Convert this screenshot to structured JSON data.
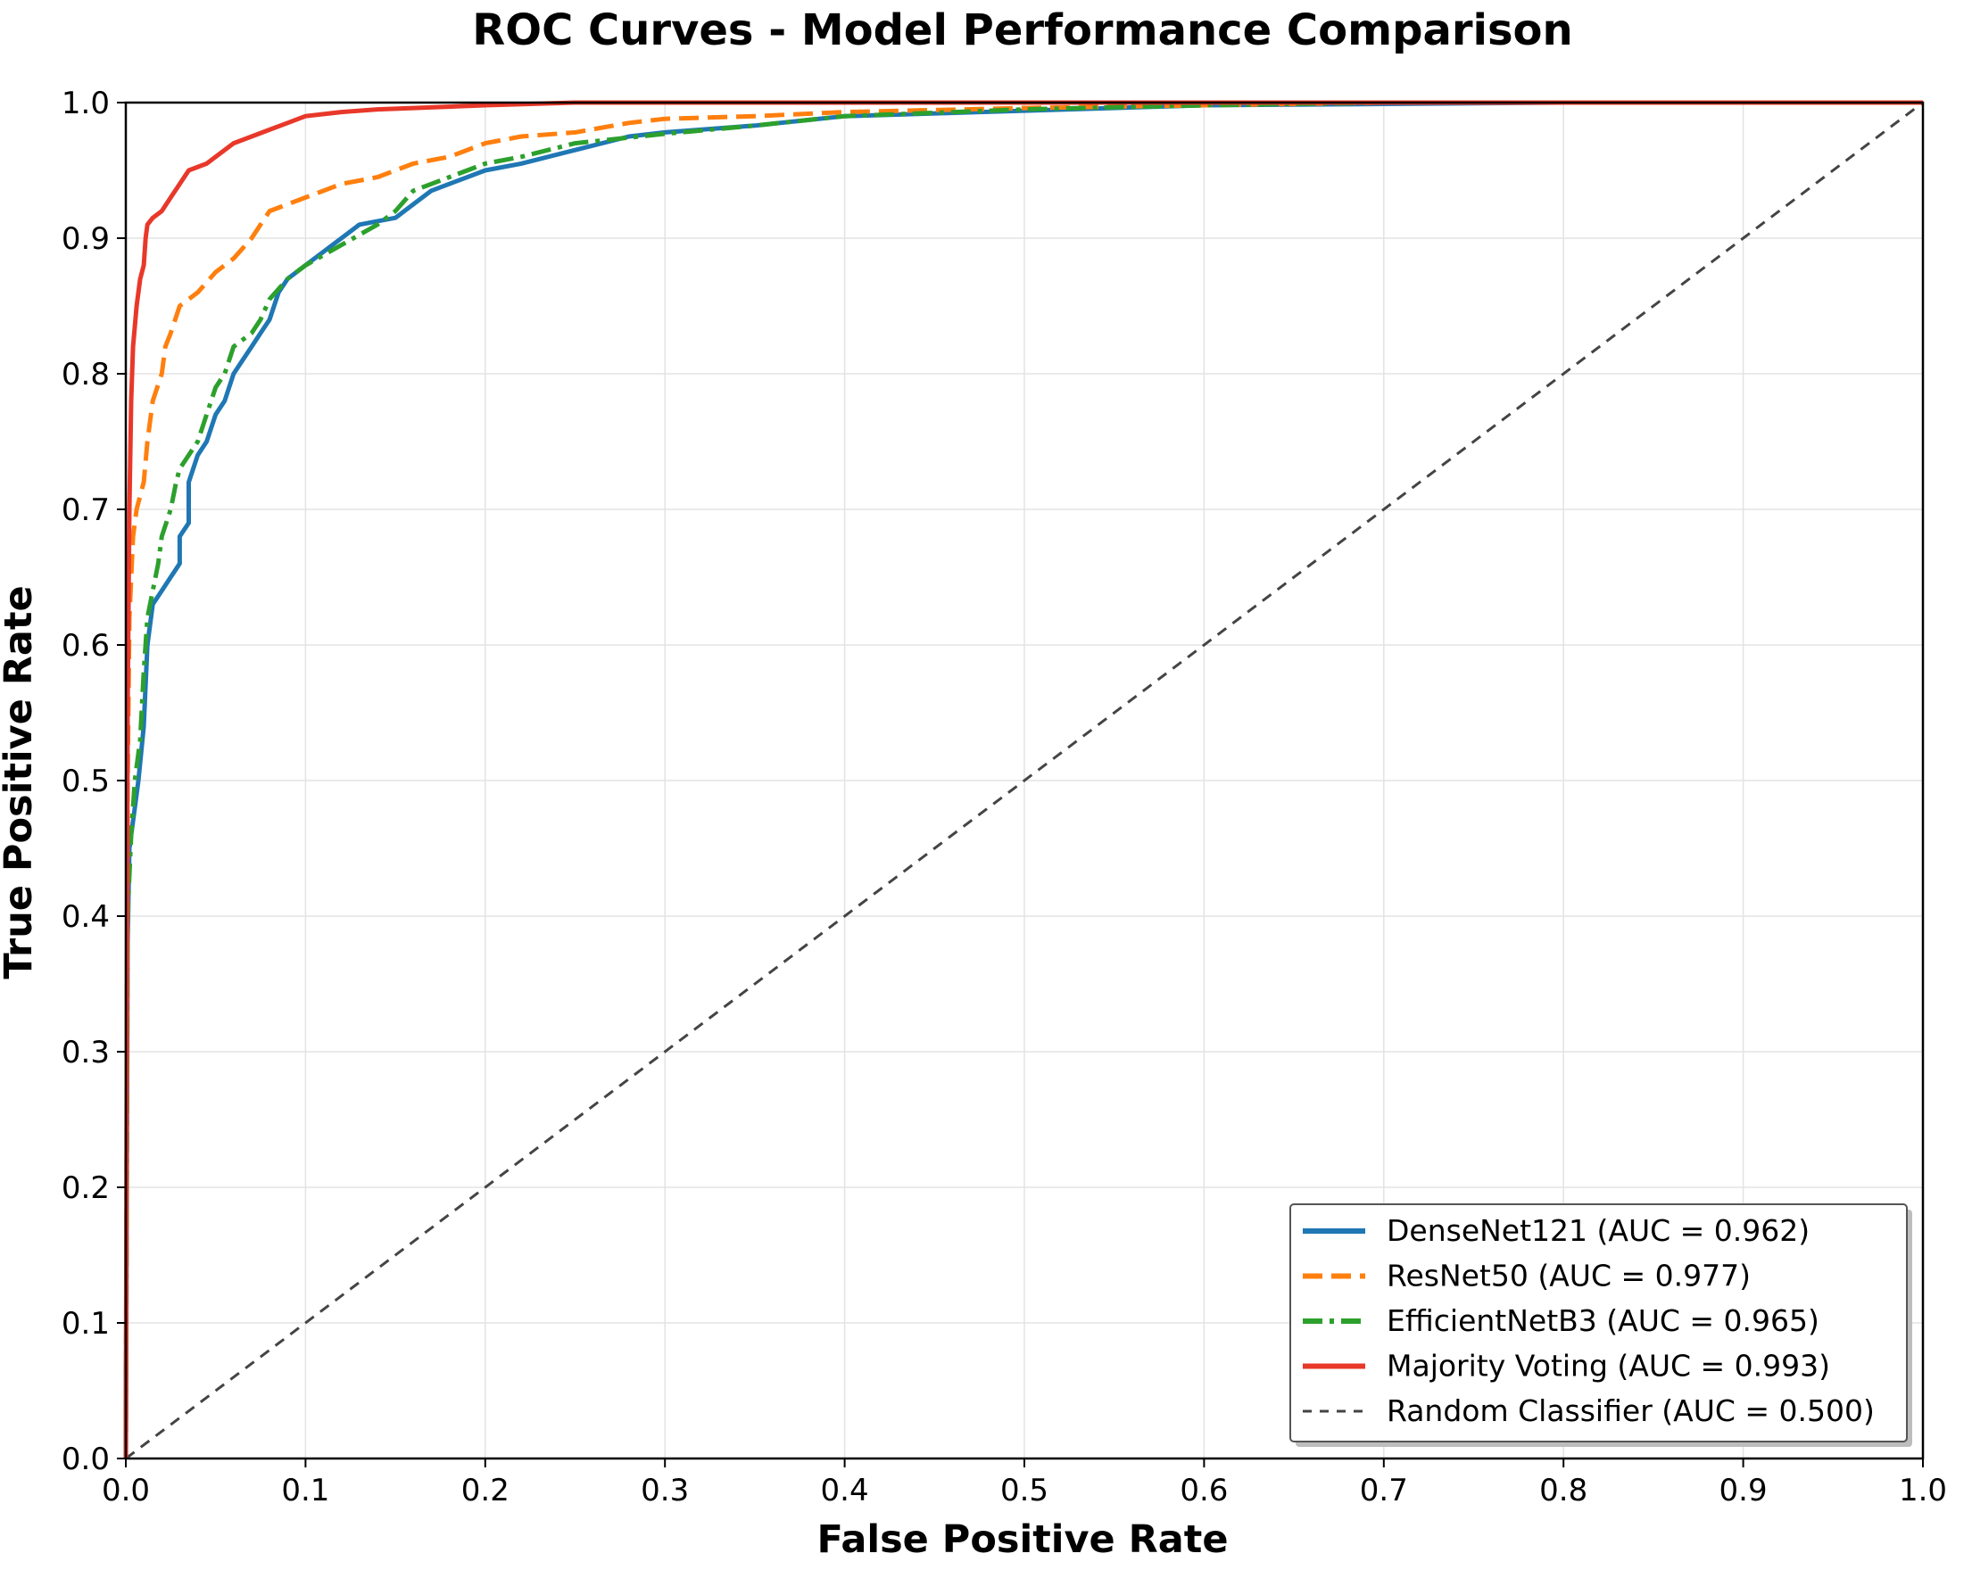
{
  "chart_data": {
    "type": "line",
    "title": "ROC Curves - Model Performance Comparison",
    "xlabel": "False Positive Rate",
    "ylabel": "True Positive Rate",
    "xlim": [
      0,
      1
    ],
    "ylim": [
      0,
      1
    ],
    "grid": true,
    "legend_position": "bottom-right",
    "x_ticks": [
      "0.0",
      "0.1",
      "0.2",
      "0.3",
      "0.4",
      "0.5",
      "0.6",
      "0.7",
      "0.8",
      "0.9",
      "1.0"
    ],
    "y_ticks": [
      "0.0",
      "0.1",
      "0.2",
      "0.3",
      "0.4",
      "0.5",
      "0.6",
      "0.7",
      "0.8",
      "0.9",
      "1.0"
    ],
    "series": [
      {
        "name": "DenseNet121",
        "label": "DenseNet121 (AUC = 0.962)",
        "auc": 0.962,
        "color": "#1f77b4",
        "style": "solid",
        "points": [
          [
            0,
            0
          ],
          [
            0.001,
            0.38
          ],
          [
            0.002,
            0.45
          ],
          [
            0.005,
            0.48
          ],
          [
            0.007,
            0.5
          ],
          [
            0.01,
            0.54
          ],
          [
            0.012,
            0.6
          ],
          [
            0.015,
            0.63
          ],
          [
            0.02,
            0.64
          ],
          [
            0.025,
            0.65
          ],
          [
            0.03,
            0.66
          ],
          [
            0.03,
            0.67
          ],
          [
            0.03,
            0.68
          ],
          [
            0.035,
            0.69
          ],
          [
            0.035,
            0.72
          ],
          [
            0.04,
            0.74
          ],
          [
            0.045,
            0.75
          ],
          [
            0.05,
            0.77
          ],
          [
            0.055,
            0.78
          ],
          [
            0.06,
            0.8
          ],
          [
            0.065,
            0.81
          ],
          [
            0.07,
            0.82
          ],
          [
            0.075,
            0.83
          ],
          [
            0.08,
            0.84
          ],
          [
            0.085,
            0.86
          ],
          [
            0.09,
            0.87
          ],
          [
            0.1,
            0.88
          ],
          [
            0.11,
            0.89
          ],
          [
            0.12,
            0.9
          ],
          [
            0.13,
            0.91
          ],
          [
            0.15,
            0.915
          ],
          [
            0.16,
            0.925
          ],
          [
            0.17,
            0.935
          ],
          [
            0.18,
            0.94
          ],
          [
            0.2,
            0.95
          ],
          [
            0.22,
            0.955
          ],
          [
            0.25,
            0.965
          ],
          [
            0.28,
            0.975
          ],
          [
            0.3,
            0.978
          ],
          [
            0.35,
            0.983
          ],
          [
            0.4,
            0.99
          ],
          [
            0.5,
            0.994
          ],
          [
            0.6,
            0.998
          ],
          [
            0.7,
            0.999
          ],
          [
            0.8,
            1.0
          ],
          [
            1.0,
            1.0
          ]
        ]
      },
      {
        "name": "ResNet50",
        "label": "ResNet50 (AUC = 0.977)",
        "auc": 0.977,
        "color": "#ff7f0e",
        "style": "dashed",
        "points": [
          [
            0,
            0
          ],
          [
            0.001,
            0.5
          ],
          [
            0.002,
            0.62
          ],
          [
            0.004,
            0.68
          ],
          [
            0.006,
            0.7
          ],
          [
            0.01,
            0.72
          ],
          [
            0.012,
            0.75
          ],
          [
            0.015,
            0.78
          ],
          [
            0.02,
            0.8
          ],
          [
            0.022,
            0.82
          ],
          [
            0.025,
            0.83
          ],
          [
            0.03,
            0.85
          ],
          [
            0.04,
            0.86
          ],
          [
            0.05,
            0.875
          ],
          [
            0.06,
            0.885
          ],
          [
            0.07,
            0.9
          ],
          [
            0.075,
            0.91
          ],
          [
            0.08,
            0.92
          ],
          [
            0.09,
            0.925
          ],
          [
            0.1,
            0.93
          ],
          [
            0.12,
            0.94
          ],
          [
            0.14,
            0.945
          ],
          [
            0.16,
            0.955
          ],
          [
            0.18,
            0.96
          ],
          [
            0.2,
            0.97
          ],
          [
            0.22,
            0.975
          ],
          [
            0.25,
            0.978
          ],
          [
            0.28,
            0.985
          ],
          [
            0.3,
            0.988
          ],
          [
            0.35,
            0.99
          ],
          [
            0.4,
            0.993
          ],
          [
            0.5,
            0.996
          ],
          [
            0.6,
            0.998
          ],
          [
            0.7,
            1.0
          ],
          [
            1.0,
            1.0
          ]
        ]
      },
      {
        "name": "EfficientNetB3",
        "label": "EfficientNetB3 (AUC = 0.965)",
        "auc": 0.965,
        "color": "#2ca02c",
        "style": "dashdot",
        "points": [
          [
            0,
            0
          ],
          [
            0.001,
            0.4
          ],
          [
            0.003,
            0.46
          ],
          [
            0.005,
            0.5
          ],
          [
            0.008,
            0.53
          ],
          [
            0.01,
            0.58
          ],
          [
            0.012,
            0.62
          ],
          [
            0.015,
            0.64
          ],
          [
            0.018,
            0.66
          ],
          [
            0.02,
            0.68
          ],
          [
            0.025,
            0.7
          ],
          [
            0.028,
            0.72
          ],
          [
            0.03,
            0.73
          ],
          [
            0.035,
            0.74
          ],
          [
            0.04,
            0.75
          ],
          [
            0.045,
            0.77
          ],
          [
            0.05,
            0.79
          ],
          [
            0.055,
            0.8
          ],
          [
            0.06,
            0.82
          ],
          [
            0.07,
            0.83
          ],
          [
            0.075,
            0.84
          ],
          [
            0.08,
            0.855
          ],
          [
            0.09,
            0.87
          ],
          [
            0.1,
            0.88
          ],
          [
            0.12,
            0.895
          ],
          [
            0.14,
            0.91
          ],
          [
            0.15,
            0.92
          ],
          [
            0.16,
            0.935
          ],
          [
            0.18,
            0.945
          ],
          [
            0.2,
            0.955
          ],
          [
            0.22,
            0.96
          ],
          [
            0.25,
            0.97
          ],
          [
            0.3,
            0.977
          ],
          [
            0.35,
            0.983
          ],
          [
            0.4,
            0.99
          ],
          [
            0.5,
            0.995
          ],
          [
            0.6,
            0.998
          ],
          [
            0.7,
            1.0
          ],
          [
            1.0,
            1.0
          ]
        ]
      },
      {
        "name": "Majority Voting",
        "label": "Majority Voting (AUC = 0.993)",
        "auc": 0.993,
        "color": "#e8382a",
        "style": "solid",
        "points": [
          [
            0,
            0
          ],
          [
            0.001,
            0.55
          ],
          [
            0.002,
            0.7
          ],
          [
            0.003,
            0.78
          ],
          [
            0.004,
            0.82
          ],
          [
            0.006,
            0.85
          ],
          [
            0.008,
            0.87
          ],
          [
            0.01,
            0.88
          ],
          [
            0.011,
            0.9
          ],
          [
            0.012,
            0.91
          ],
          [
            0.015,
            0.915
          ],
          [
            0.02,
            0.92
          ],
          [
            0.025,
            0.93
          ],
          [
            0.03,
            0.94
          ],
          [
            0.035,
            0.95
          ],
          [
            0.045,
            0.955
          ],
          [
            0.05,
            0.96
          ],
          [
            0.06,
            0.97
          ],
          [
            0.07,
            0.975
          ],
          [
            0.08,
            0.98
          ],
          [
            0.09,
            0.985
          ],
          [
            0.1,
            0.99
          ],
          [
            0.12,
            0.993
          ],
          [
            0.14,
            0.995
          ],
          [
            0.16,
            0.996
          ],
          [
            0.2,
            0.998
          ],
          [
            0.25,
            1.0
          ],
          [
            1.0,
            1.0
          ]
        ]
      },
      {
        "name": "Random Classifier",
        "label": "Random Classifier (AUC = 0.500)",
        "auc": 0.5,
        "color": "#444444",
        "style": "dotted-dash",
        "points": [
          [
            0,
            0
          ],
          [
            1,
            1
          ]
        ]
      }
    ]
  }
}
